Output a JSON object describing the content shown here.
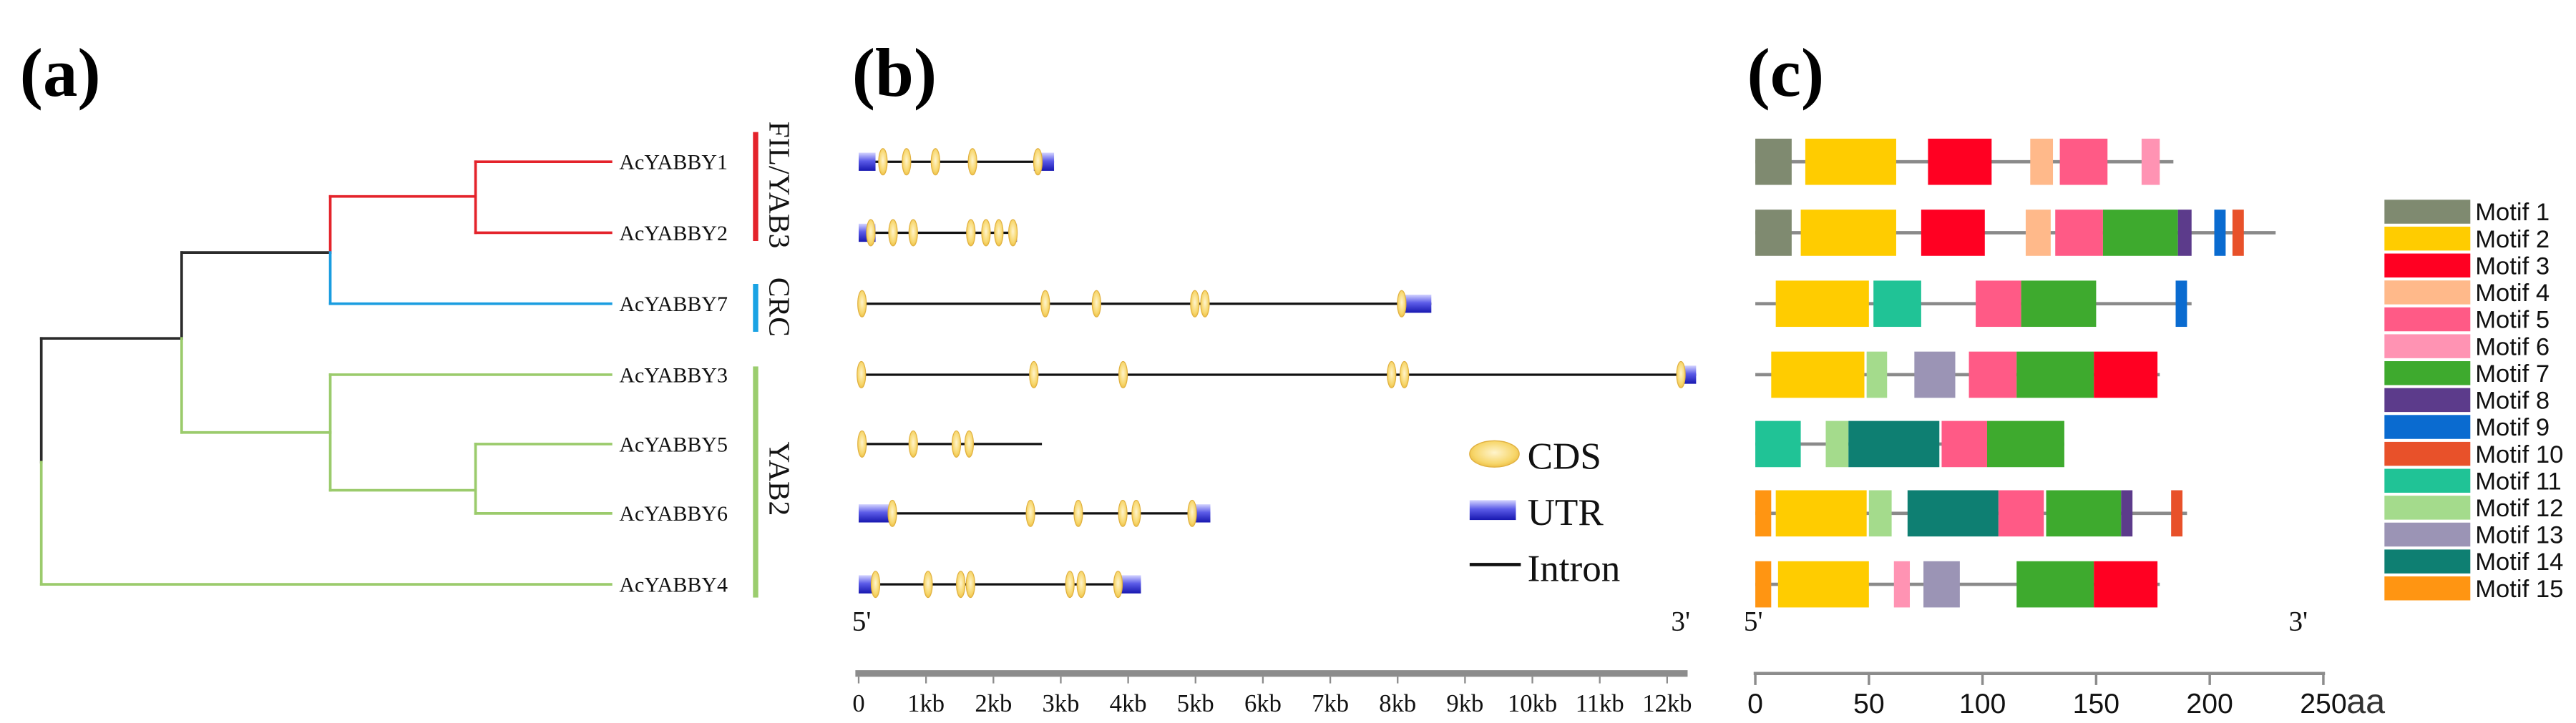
{
  "panels": {
    "a": "(a)",
    "b": "(b)",
    "c": "(c)"
  },
  "tree": {
    "leaves": [
      "AcYABBY1",
      "AcYABBY2",
      "AcYABBY7",
      "AcYABBY3",
      "AcYABBY5",
      "AcYABBY6",
      "AcYABBY4"
    ]
  },
  "groups": [
    {
      "name": "FIL/YAB3",
      "color": "#e4232b"
    },
    {
      "name": "CRC",
      "color": "#1aa3e4"
    },
    {
      "name": "YAB2",
      "color": "#9bcd6e"
    }
  ],
  "colors": {
    "intron": "#111111",
    "axis": "#8c8c8c",
    "backbone": "#8a8a8a"
  },
  "gene_structure": {
    "ends": {
      "five": "5'",
      "three": "3'"
    },
    "legend": {
      "cds": "CDS",
      "utr": "UTR",
      "intron": "Intron"
    },
    "unit": "kb",
    "tick_values": [
      0,
      1,
      2,
      3,
      4,
      5,
      6,
      7,
      8,
      9,
      10,
      11,
      12
    ],
    "tick_labels": [
      "0",
      "1kb",
      "2kb",
      "3kb",
      "4kb",
      "5kb",
      "6kb",
      "7kb",
      "8kb",
      "9kb",
      "10kb",
      "11kb",
      "12kb"
    ],
    "rows": [
      {
        "length": 2.9,
        "utr": [
          [
            0,
            0.25
          ],
          [
            2.6,
            2.9
          ]
        ],
        "cds": [
          [
            0.3,
            0.42
          ],
          [
            0.65,
            0.77
          ],
          [
            1.08,
            1.2
          ],
          [
            1.65,
            1.73
          ],
          [
            2.6,
            2.72
          ]
        ]
      },
      {
        "length": 2.35,
        "utr": [
          [
            0,
            0.25
          ],
          [
            2.25,
            2.35
          ]
        ],
        "cds": [
          [
            0.12,
            0.24
          ],
          [
            0.45,
            0.57
          ],
          [
            0.75,
            0.87
          ],
          [
            1.63,
            1.7
          ],
          [
            1.85,
            1.93
          ],
          [
            2.04,
            2.12
          ],
          [
            2.24,
            2.34
          ]
        ]
      },
      {
        "length": 8.5,
        "utr": [
          [
            0,
            0.1
          ],
          [
            8.05,
            8.5
          ]
        ],
        "cds": [
          [
            0,
            0.1
          ],
          [
            2.72,
            2.82
          ],
          [
            3.48,
            3.58
          ],
          [
            4.95,
            5.03
          ],
          [
            5.1,
            5.18
          ],
          [
            8.0,
            8.12
          ]
        ]
      },
      {
        "length": 12.43,
        "utr": [
          [
            0,
            0.08
          ],
          [
            12.2,
            12.43
          ]
        ],
        "cds": [
          [
            0,
            0.08
          ],
          [
            2.55,
            2.65
          ],
          [
            3.88,
            3.97
          ],
          [
            7.87,
            7.95
          ],
          [
            8.06,
            8.14
          ],
          [
            12.15,
            12.26
          ]
        ]
      },
      {
        "length": 2.72,
        "utr": [],
        "cds": [
          [
            0,
            0.1
          ],
          [
            0.76,
            0.86
          ],
          [
            1.4,
            1.5
          ],
          [
            1.6,
            1.68
          ]
        ]
      },
      {
        "length": 5.22,
        "utr": [
          [
            0,
            0.5
          ],
          [
            4.95,
            5.22
          ]
        ],
        "cds": [
          [
            0.45,
            0.55
          ],
          [
            2.5,
            2.6
          ],
          [
            3.21,
            3.31
          ],
          [
            3.88,
            3.96
          ],
          [
            4.08,
            4.16
          ],
          [
            4.9,
            5.0
          ]
        ]
      },
      {
        "length": 4.19,
        "utr": [
          [
            0,
            0.25
          ],
          [
            3.88,
            4.19
          ]
        ],
        "cds": [
          [
            0.2,
            0.3
          ],
          [
            0.98,
            1.08
          ],
          [
            1.47,
            1.56
          ],
          [
            1.62,
            1.7
          ],
          [
            3.09,
            3.18
          ],
          [
            3.26,
            3.35
          ],
          [
            3.8,
            3.9
          ]
        ]
      }
    ]
  },
  "motif_structure": {
    "ends": {
      "five": "5'",
      "three": "3'"
    },
    "unit": "aa",
    "tick_values": [
      0,
      50,
      100,
      150,
      200,
      250
    ],
    "tick_labels": [
      "0",
      "50",
      "100",
      "150",
      "200",
      "250"
    ],
    "legend": [
      {
        "label": "Motif 1",
        "color": "#7f8a70"
      },
      {
        "label": "Motif 2",
        "color": "#ffcc00"
      },
      {
        "label": "Motif 3",
        "color": "#ff0022"
      },
      {
        "label": "Motif 4",
        "color": "#ffb98a"
      },
      {
        "label": "Motif 5",
        "color": "#ff5a86"
      },
      {
        "label": "Motif 6",
        "color": "#ff93b3"
      },
      {
        "label": "Motif 7",
        "color": "#3eaa2e"
      },
      {
        "label": "Motif 8",
        "color": "#5c3b8b"
      },
      {
        "label": "Motif 9",
        "color": "#0a6bd0"
      },
      {
        "label": "Motif 10",
        "color": "#e8512a"
      },
      {
        "label": "Motif 11",
        "color": "#20c396"
      },
      {
        "label": "Motif 12",
        "color": "#a4db8c"
      },
      {
        "label": "Motif 13",
        "color": "#9b94b5"
      },
      {
        "label": "Motif 14",
        "color": "#0e7f72"
      },
      {
        "label": "Motif 15",
        "color": "#ff9512"
      }
    ],
    "rows": [
      {
        "length": 184,
        "motifs": [
          [
            1,
            0,
            16
          ],
          [
            2,
            22,
            62
          ],
          [
            3,
            76,
            104
          ],
          [
            4,
            121,
            131
          ],
          [
            5,
            134,
            155
          ],
          [
            6,
            170,
            178
          ]
        ]
      },
      {
        "length": 229,
        "motifs": [
          [
            1,
            0,
            16
          ],
          [
            2,
            20,
            62
          ],
          [
            3,
            73,
            101
          ],
          [
            4,
            119,
            130
          ],
          [
            5,
            132,
            153
          ],
          [
            7,
            153,
            186
          ],
          [
            8,
            186,
            192
          ],
          [
            9,
            202,
            207
          ],
          [
            10,
            210,
            215
          ]
        ]
      },
      {
        "length": 192,
        "motifs": [
          [
            2,
            9,
            50
          ],
          [
            11,
            52,
            73
          ],
          [
            5,
            97,
            117
          ],
          [
            7,
            117,
            150
          ],
          [
            9,
            185,
            190
          ]
        ]
      },
      {
        "length": 178,
        "motifs": [
          [
            2,
            7,
            48
          ],
          [
            12,
            49,
            58
          ],
          [
            13,
            70,
            88
          ],
          [
            5,
            94,
            115
          ],
          [
            7,
            115,
            149
          ],
          [
            3,
            149,
            177
          ]
        ]
      },
      {
        "length": 136,
        "motifs": [
          [
            11,
            0,
            20
          ],
          [
            12,
            31,
            41
          ],
          [
            14,
            41,
            81
          ],
          [
            5,
            82,
            102
          ],
          [
            7,
            102,
            136
          ]
        ]
      },
      {
        "length": 190,
        "motifs": [
          [
            15,
            0,
            7
          ],
          [
            2,
            9,
            49
          ],
          [
            12,
            50,
            60
          ],
          [
            14,
            67,
            107
          ],
          [
            5,
            107,
            127
          ],
          [
            7,
            128,
            161
          ],
          [
            8,
            161,
            166
          ],
          [
            10,
            183,
            188
          ]
        ]
      },
      {
        "length": 178,
        "motifs": [
          [
            15,
            0,
            7
          ],
          [
            2,
            10,
            50
          ],
          [
            6,
            61,
            68
          ],
          [
            13,
            74,
            90
          ],
          [
            7,
            115,
            149
          ],
          [
            3,
            149,
            177
          ]
        ]
      }
    ]
  }
}
